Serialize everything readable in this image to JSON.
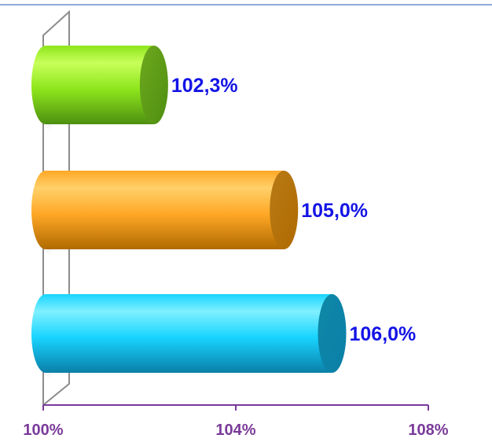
{
  "chart_data": {
    "type": "bar",
    "orientation": "horizontal",
    "style": "3d-cylinder",
    "categories": [
      "",
      "",
      ""
    ],
    "values": [
      102.3,
      105.0,
      106.0
    ],
    "data_labels": [
      "102,3%",
      "105,0%",
      "106,0%"
    ],
    "xlim": [
      100,
      108
    ],
    "x_ticks": [
      100,
      104,
      108
    ],
    "x_tick_labels": [
      "100%",
      "104%",
      "108%"
    ],
    "grid": false,
    "legend": "none",
    "colors": {
      "bars": [
        {
          "light": "#c8ff5a",
          "mid": "#8ee61c",
          "dark": "#4e8f10",
          "cap": "#6ea81e"
        },
        {
          "light": "#ffd06a",
          "mid": "#ffa826",
          "dark": "#b06a00",
          "cap": "#b87a16"
        },
        {
          "light": "#7ff0ff",
          "mid": "#18d4ff",
          "dark": "#0a7fa8",
          "cap": "#0f88a6"
        }
      ],
      "data_label": "#1414e6",
      "axis_tick_label": "#7a3a9a",
      "axis_line": "#7a3a9a",
      "top_rule": "#4a78c8",
      "wall": "#8c8c8c"
    }
  }
}
